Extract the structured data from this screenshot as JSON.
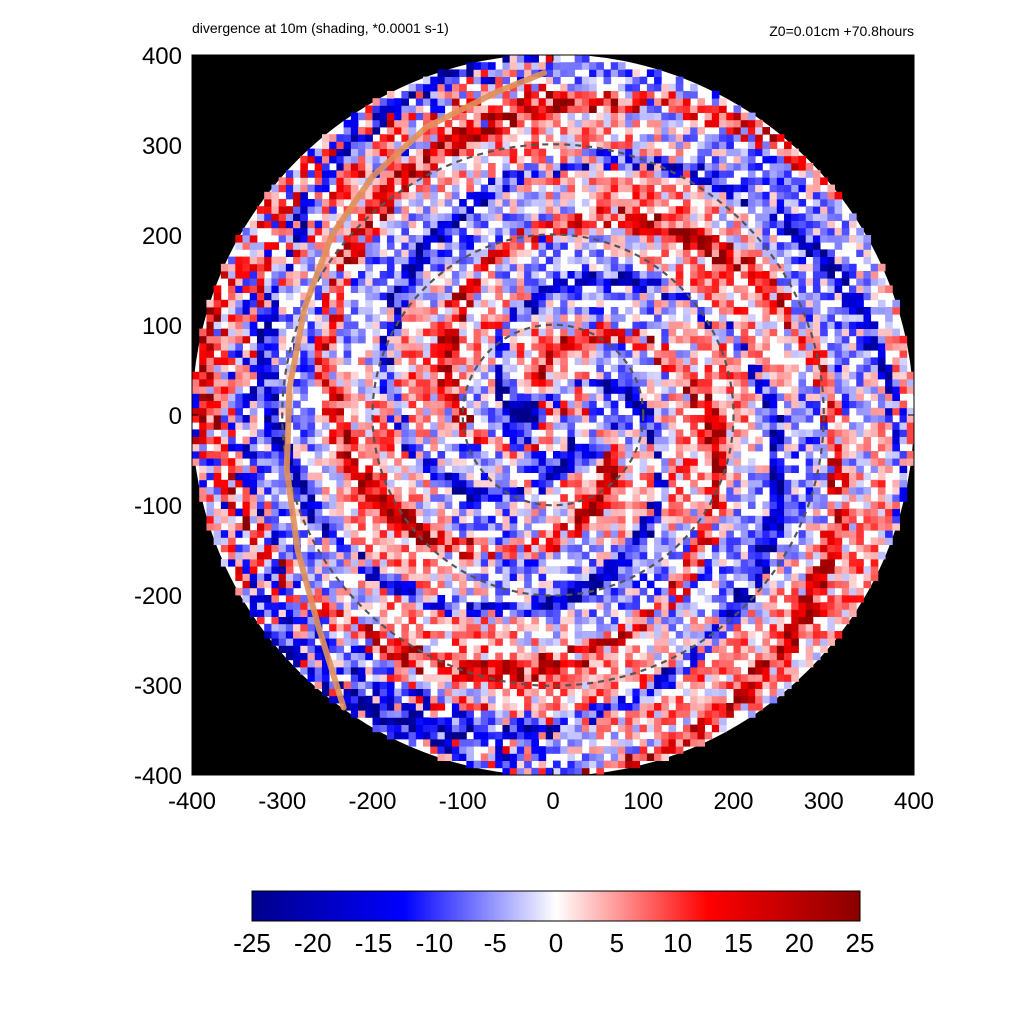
{
  "chart_data": {
    "type": "heatmap",
    "title": "divergence at 10m (shading, *0.0001 s-1)",
    "subtitle": "Z0=0.01cm  +70.8hours",
    "xlabel": "",
    "ylabel": "",
    "xlim": [
      -400,
      400
    ],
    "ylim": [
      -400,
      400
    ],
    "x_ticks": [
      -400,
      -300,
      -200,
      -100,
      0,
      100,
      200,
      300,
      400
    ],
    "y_ticks": [
      -400,
      -300,
      -200,
      -100,
      0,
      100,
      200,
      300,
      400
    ],
    "x_tick_labels": [
      "-400",
      "-300",
      "-200",
      "-100",
      "0",
      "100",
      "200",
      "300",
      "400"
    ],
    "y_tick_labels": [
      "400",
      "300",
      "200",
      "100",
      "0",
      "-100",
      "-200",
      "-300",
      "-400"
    ],
    "domain_radius": 400,
    "outside_color": "#000000",
    "colorbar": {
      "range": [
        -25,
        25
      ],
      "ticks": [
        -25,
        -20,
        -15,
        -10,
        -5,
        0,
        5,
        10,
        15,
        20,
        25
      ],
      "tick_labels": [
        "-25",
        "-20",
        "-15",
        "-10",
        "-5",
        "0",
        "5",
        "10",
        "15",
        "20",
        "25"
      ],
      "colors": [
        "#00008b",
        "#0000ff",
        "#ffffff",
        "#ff0000",
        "#8b0000"
      ]
    },
    "range_rings": [
      {
        "radius": 100,
        "style": "dashed",
        "color": "#555555"
      },
      {
        "radius": 200,
        "style": "dashed",
        "color": "#555555"
      },
      {
        "radius": 300,
        "style": "dashed",
        "color": "#555555"
      }
    ],
    "track": {
      "color": "#e0905a",
      "points": [
        [
          -10,
          380
        ],
        [
          -60,
          360
        ],
        [
          -140,
          320
        ],
        [
          -200,
          265
        ],
        [
          -245,
          200
        ],
        [
          -275,
          120
        ],
        [
          -292,
          30
        ],
        [
          -295,
          -60
        ],
        [
          -283,
          -150
        ],
        [
          -260,
          -235
        ],
        [
          -232,
          -325
        ]
      ]
    }
  }
}
